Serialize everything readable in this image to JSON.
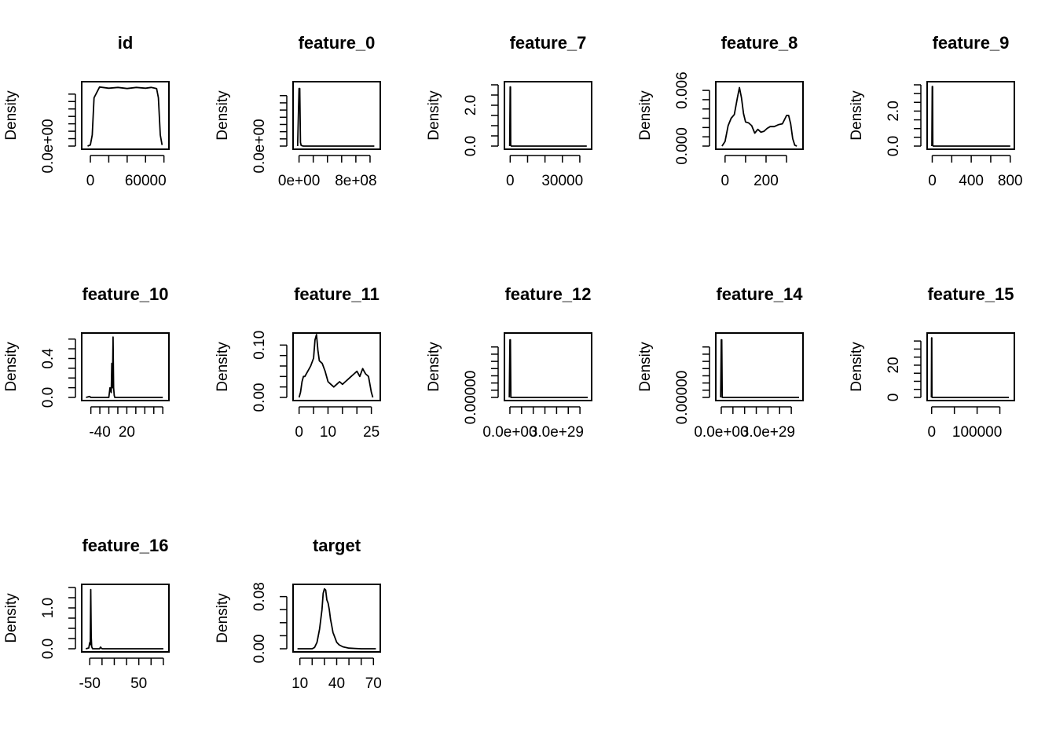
{
  "chart_data": [
    {
      "type": "line",
      "title": "id",
      "xlabel": "",
      "ylabel": "Density",
      "xlim": [
        -6000,
        82000
      ],
      "ylim": [
        0,
        1.65e-05
      ],
      "xticks": [
        0,
        20000,
        40000,
        60000,
        80000
      ],
      "xtick_labels": [
        "0",
        "",
        "",
        "60000",
        ""
      ],
      "yticks": [
        0,
        2e-06,
        4e-06,
        6e-06,
        8e-06,
        1e-05,
        1.2e-05,
        1.4e-05
      ],
      "ytick_labels": [
        "0.0e+00",
        "",
        "",
        "",
        "",
        "",
        "",
        ""
      ],
      "series": [
        {
          "x": [
            -3000,
            0,
            2000,
            4000,
            10000,
            20000,
            30000,
            40000,
            50000,
            60000,
            66000,
            72000,
            74000,
            76000,
            78000
          ],
          "y": [
            0,
            3e-07,
            3e-06,
            1.3e-05,
            1.59e-05,
            1.56e-05,
            1.58e-05,
            1.55e-05,
            1.58e-05,
            1.56e-05,
            1.58e-05,
            1.55e-05,
            1.3e-05,
            3e-06,
            3e-07
          ]
        }
      ]
    },
    {
      "type": "line",
      "title": "feature_0",
      "xlabel": "",
      "ylabel": "Density",
      "xlim": [
        -40000000,
        1100000000
      ],
      "ylim": [
        0,
        8.5e-10
      ],
      "xticks": [
        0,
        200000000,
        400000000,
        600000000,
        800000000,
        1000000000
      ],
      "xtick_labels": [
        "0e+00",
        "",
        "",
        "",
        "8e+08",
        ""
      ],
      "yticks": [
        0,
        1e-10,
        2e-10,
        3e-10,
        4e-10,
        5e-10,
        6e-10,
        7e-10
      ],
      "ytick_labels": [
        "0.0e+00",
        "",
        "",
        "",
        "",
        "",
        "",
        ""
      ],
      "series": [
        {
          "x": [
            -20000000,
            0,
            10000000,
            20000000,
            30000000,
            60000000,
            1060000000
          ],
          "y": [
            0,
            8e-10,
            8e-10,
            5e-11,
            1e-11,
            0,
            0
          ]
        }
      ]
    },
    {
      "type": "line",
      "title": "feature_7",
      "xlabel": "",
      "ylabel": "Density",
      "xlim": [
        -1500,
        45000
      ],
      "ylim": [
        0,
        3.0
      ],
      "xticks": [
        0,
        10000,
        20000,
        30000,
        40000
      ],
      "xtick_labels": [
        "0",
        "",
        "",
        "30000",
        ""
      ],
      "yticks": [
        0,
        0.5,
        1,
        1.5,
        2,
        2.5,
        3
      ],
      "ytick_labels": [
        "0.0",
        "",
        "",
        "",
        "2.0",
        "",
        ""
      ],
      "series": [
        {
          "x": [
            -300,
            0,
            150,
            300,
            600,
            44000
          ],
          "y": [
            0,
            2.9,
            2.9,
            0.05,
            0,
            0
          ]
        }
      ]
    },
    {
      "type": "line",
      "title": "feature_8",
      "xlabel": "",
      "ylabel": "Density",
      "xlim": [
        -30,
        365
      ],
      "ylim": [
        0,
        0.0066
      ],
      "xticks": [
        0,
        100,
        200,
        300
      ],
      "xtick_labels": [
        "0",
        "",
        "200",
        ""
      ],
      "yticks": [
        0,
        0.001,
        0.002,
        0.003,
        0.004,
        0.005,
        0.006
      ],
      "ytick_labels": [
        "0.000",
        "",
        "",
        "",
        "",
        "",
        "0.006"
      ],
      "series": [
        {
          "x": [
            -15,
            0,
            15,
            30,
            45,
            60,
            70,
            80,
            90,
            100,
            115,
            130,
            145,
            160,
            175,
            190,
            205,
            220,
            240,
            260,
            280,
            300,
            310,
            320,
            330,
            340,
            350
          ],
          "y": [
            0,
            0.0005,
            0.0022,
            0.003,
            0.0034,
            0.0052,
            0.0063,
            0.0052,
            0.0035,
            0.0026,
            0.0025,
            0.0022,
            0.0014,
            0.0018,
            0.0015,
            0.0016,
            0.0019,
            0.0021,
            0.0021,
            0.0023,
            0.0024,
            0.0033,
            0.0033,
            0.0024,
            0.0008,
            0.0001,
            0
          ]
        }
      ]
    },
    {
      "type": "line",
      "title": "feature_9",
      "xlabel": "",
      "ylabel": "Density",
      "xlim": [
        -20,
        810
      ],
      "ylim": [
        0,
        3.5
      ],
      "xticks": [
        0,
        200,
        400,
        600,
        800
      ],
      "xtick_labels": [
        "0",
        "",
        "400",
        "",
        "800"
      ],
      "yticks": [
        0,
        0.5,
        1,
        1.5,
        2,
        2.5,
        3,
        3.5
      ],
      "ytick_labels": [
        "0.0",
        "",
        "",
        "",
        "2.0",
        "",
        "",
        ""
      ],
      "series": [
        {
          "x": [
            -4,
            0,
            3,
            6,
            10,
            800
          ],
          "y": [
            0,
            3.4,
            3.4,
            0.05,
            0,
            0
          ]
        }
      ]
    },
    {
      "type": "line",
      "title": "feature_10",
      "xlabel": "",
      "ylabel": "Density",
      "xlim": [
        -60,
        75
      ],
      "ylim": [
        0,
        0.63
      ],
      "xticks": [
        -50,
        -35,
        -20,
        -5,
        10,
        25,
        40,
        55,
        70
      ],
      "xtick_labels": [
        "",
        "-40",
        "",
        "",
        "20",
        "",
        "",
        "",
        ""
      ],
      "yticks": [
        0,
        0.1,
        0.2,
        0.3,
        0.4,
        0.5,
        0.6
      ],
      "ytick_labels": [
        "0.0",
        "",
        "",
        "",
        "0.4",
        "",
        ""
      ],
      "series": [
        {
          "x": [
            -58,
            -55,
            -52,
            -50,
            -20,
            -18,
            -16,
            -15,
            -14,
            -13,
            -12,
            -11,
            -10,
            70
          ],
          "y": [
            0,
            0.005,
            0.01,
            0,
            0,
            0.1,
            0.05,
            0.35,
            0.1,
            0.62,
            0.1,
            0.02,
            0,
            0
          ]
        }
      ]
    },
    {
      "type": "line",
      "title": "feature_11",
      "xlabel": "",
      "ylabel": "Density",
      "xlim": [
        -1,
        27
      ],
      "ylim": [
        0,
        0.117
      ],
      "xticks": [
        0,
        5,
        10,
        15,
        20,
        25
      ],
      "xtick_labels": [
        "0",
        "",
        "10",
        "",
        "",
        "25"
      ],
      "yticks": [
        0,
        0.02,
        0.04,
        0.06,
        0.08,
        0.1
      ],
      "ytick_labels": [
        "0.00",
        "",
        "",
        "",
        "",
        "0.10"
      ],
      "series": [
        {
          "x": [
            0,
            0.5,
            1,
            1.5,
            2,
            3,
            4,
            5,
            5.5,
            6,
            6.5,
            7,
            8,
            9,
            10,
            11,
            12,
            13,
            14,
            15,
            16,
            17,
            18,
            19,
            20,
            21,
            22,
            22.5,
            23,
            24,
            25,
            25.5
          ],
          "y": [
            0,
            0.01,
            0.03,
            0.04,
            0.04,
            0.05,
            0.06,
            0.075,
            0.11,
            0.12,
            0.09,
            0.07,
            0.065,
            0.05,
            0.03,
            0.025,
            0.02,
            0.025,
            0.03,
            0.025,
            0.03,
            0.035,
            0.04,
            0.045,
            0.05,
            0.04,
            0.055,
            0.05,
            0.045,
            0.04,
            0.01,
            0
          ]
        }
      ]
    },
    {
      "type": "line",
      "title": "feature_12",
      "xlabel": "",
      "ylabel": "Density",
      "xlim": [
        -1.5e+28,
        5.05e+29
      ],
      "ylim": [
        0,
        8.5e-30
      ],
      "xticks": [
        0,
        7.5e+28,
        1.5e+29,
        2.25e+29,
        3e+29,
        3.75e+29,
        4.5e+29
      ],
      "xtick_labels": [
        "0.0e+00",
        "",
        "",
        "",
        "3.0e+29",
        "",
        ""
      ],
      "yticks": [
        0,
        1e-30,
        2e-30,
        3e-30,
        4e-30,
        5e-30,
        6e-30,
        7e-30
      ],
      "ytick_labels": [
        "0.00000",
        "",
        "",
        "",
        "",
        "",
        "",
        ""
      ],
      "series": [
        {
          "x": [
            -4e+27,
            0,
            3e+27,
            6e+27,
            5e+29
          ],
          "y": [
            0,
            8e-30,
            8e-30,
            0,
            0
          ]
        }
      ]
    },
    {
      "type": "line",
      "title": "feature_14",
      "xlabel": "",
      "ylabel": "Density",
      "xlim": [
        -1.5e+28,
        5.05e+29
      ],
      "ylim": [
        0,
        8.5e-30
      ],
      "xticks": [
        0,
        7.5e+28,
        1.5e+29,
        2.25e+29,
        3e+29,
        3.75e+29,
        4.5e+29
      ],
      "xtick_labels": [
        "0.0e+00",
        "",
        "",
        "",
        "3.0e+29",
        "",
        ""
      ],
      "yticks": [
        0,
        1e-30,
        2e-30,
        3e-30,
        4e-30,
        5e-30,
        6e-30,
        7e-30
      ],
      "ytick_labels": [
        "0.00000",
        "",
        "",
        "",
        "",
        "",
        "",
        ""
      ],
      "series": [
        {
          "x": [
            -4e+27,
            0,
            3e+27,
            6e+27,
            5e+29
          ],
          "y": [
            0,
            8e-30,
            8e-30,
            0,
            0
          ]
        }
      ]
    },
    {
      "type": "line",
      "title": "feature_15",
      "xlabel": "",
      "ylabel": "Density",
      "xlim": [
        -3000,
        175000
      ],
      "ylim": [
        0,
        38
      ],
      "xticks": [
        0,
        50000,
        100000,
        150000
      ],
      "xtick_labels": [
        "0",
        "",
        "100000",
        ""
      ],
      "yticks": [
        0,
        5,
        10,
        15,
        20,
        25,
        30,
        35
      ],
      "ytick_labels": [
        "0",
        "",
        "",
        "",
        "20",
        "",
        "",
        ""
      ],
      "series": [
        {
          "x": [
            -600,
            0,
            300,
            600,
            1000,
            170000
          ],
          "y": [
            0,
            37,
            37,
            0.5,
            0,
            0
          ]
        }
      ]
    },
    {
      "type": "line",
      "title": "feature_16",
      "xlabel": "",
      "ylabel": "Density",
      "xlim": [
        -60,
        105
      ],
      "ylim": [
        0,
        1.5
      ],
      "xticks": [
        -50,
        -25,
        0,
        25,
        50,
        75,
        100
      ],
      "xtick_labels": [
        "-50",
        "",
        "",
        "",
        "50",
        "",
        ""
      ],
      "yticks": [
        0,
        0.25,
        0.5,
        0.75,
        1,
        1.25,
        1.5
      ],
      "ytick_labels": [
        "0.0",
        "",
        "",
        "",
        "1.0",
        "",
        ""
      ],
      "series": [
        {
          "x": [
            -58,
            -52,
            -50,
            -49,
            -48,
            -47,
            -46,
            -45,
            -44,
            -30,
            -28,
            -26,
            -24,
            100
          ],
          "y": [
            0,
            0.02,
            0.15,
            0.1,
            1.45,
            0.3,
            0.05,
            0.02,
            0,
            0,
            0.04,
            0.01,
            0,
            0
          ]
        }
      ]
    },
    {
      "type": "line",
      "title": "target",
      "xlabel": "",
      "ylabel": "Density",
      "xlim": [
        7,
        73
      ],
      "ylim": [
        0,
        0.094
      ],
      "xticks": [
        10,
        20,
        30,
        40,
        50,
        60,
        70
      ],
      "xtick_labels": [
        "10",
        "",
        "",
        "40",
        "",
        "",
        "70"
      ],
      "yticks": [
        0,
        0.02,
        0.04,
        0.06,
        0.08
      ],
      "ytick_labels": [
        "0.00",
        "",
        "",
        "",
        "0.08"
      ],
      "series": [
        {
          "x": [
            8,
            15,
            20,
            22,
            24,
            26,
            28,
            29,
            30,
            31,
            32,
            33,
            34,
            35,
            36,
            37,
            38,
            40,
            42,
            45,
            50,
            55,
            60,
            72
          ],
          "y": [
            0,
            0,
            0,
            0.002,
            0.01,
            0.03,
            0.06,
            0.085,
            0.092,
            0.09,
            0.075,
            0.07,
            0.06,
            0.045,
            0.035,
            0.025,
            0.02,
            0.01,
            0.006,
            0.003,
            0.001,
            0.0005,
            0,
            0
          ]
        }
      ]
    }
  ]
}
